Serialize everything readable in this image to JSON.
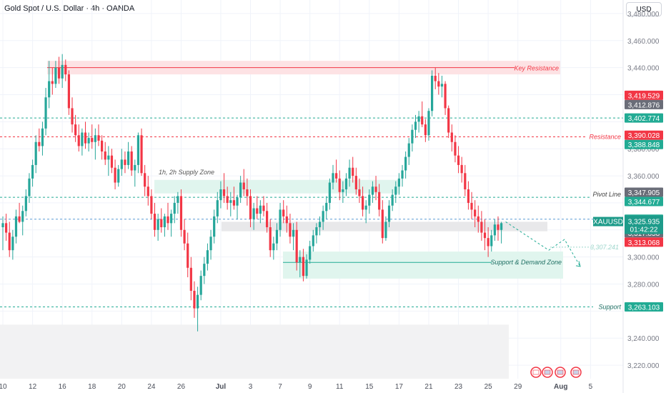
{
  "header": {
    "title": "Gold Spot / U.S. Dollar · 4h · OANDA",
    "currency": "USD"
  },
  "colors": {
    "up": "#26a69a",
    "down": "#f23645",
    "grid": "#f0f3fa",
    "resistance_line": "#f23645",
    "support_line": "#22ab94",
    "zone_red": "#fde2e4",
    "zone_green": "#e0f5ee",
    "zone_gray": "#e8e8ea",
    "label_green": "#22ab94",
    "label_red": "#f23645",
    "label_gray": "#6a6d78",
    "label_teal": "#1e9b8a"
  },
  "chart_data": {
    "type": "candlestick",
    "title": "Gold Spot / U.S. Dollar · 4h · OANDA",
    "ylim": [
      3210,
      3490
    ],
    "y_ticks": [
      3220,
      3240,
      3260,
      3280,
      3300,
      3320,
      3340,
      3360,
      3380,
      3400,
      3420,
      3440,
      3460,
      3480
    ],
    "y_tick_labels": [
      "3,220.000",
      "3,240.000",
      "",
      "3,280.000",
      "3,300.000",
      "",
      "",
      "3,360.000",
      "3,380.000",
      "",
      "",
      "3,440.000",
      "3,460.000",
      "3,480.000"
    ],
    "x_tick_labels": [
      {
        "label": "10",
        "bar": 0
      },
      {
        "label": "12",
        "bar": 9
      },
      {
        "label": "16",
        "bar": 18
      },
      {
        "label": "18",
        "bar": 27
      },
      {
        "label": "20",
        "bar": 36
      },
      {
        "label": "24",
        "bar": 45
      },
      {
        "label": "26",
        "bar": 54
      },
      {
        "label": "Jul",
        "bar": 66
      },
      {
        "label": "3",
        "bar": 75
      },
      {
        "label": "7",
        "bar": 84
      },
      {
        "label": "9",
        "bar": 93
      },
      {
        "label": "11",
        "bar": 102
      },
      {
        "label": "15",
        "bar": 111
      },
      {
        "label": "17",
        "bar": 120
      },
      {
        "label": "21",
        "bar": 129
      },
      {
        "label": "23",
        "bar": 138
      },
      {
        "label": "25",
        "bar": 147
      },
      {
        "label": "29",
        "bar": 156
      },
      {
        "label": "Aug",
        "bar": 169
      },
      {
        "label": "5",
        "bar": 178
      }
    ],
    "ohlc": [
      [
        3322,
        3330,
        3305,
        3325
      ],
      [
        3325,
        3332,
        3312,
        3318
      ],
      [
        3318,
        3326,
        3300,
        3305
      ],
      [
        3305,
        3320,
        3298,
        3315
      ],
      [
        3315,
        3335,
        3310,
        3330
      ],
      [
        3330,
        3340,
        3325,
        3326
      ],
      [
        3326,
        3338,
        3316,
        3334
      ],
      [
        3334,
        3350,
        3330,
        3345
      ],
      [
        3345,
        3362,
        3340,
        3358
      ],
      [
        3358,
        3372,
        3352,
        3368
      ],
      [
        3368,
        3390,
        3362,
        3385
      ],
      [
        3385,
        3395,
        3378,
        3382
      ],
      [
        3382,
        3400,
        3375,
        3395
      ],
      [
        3395,
        3425,
        3390,
        3418
      ],
      [
        3418,
        3445,
        3410,
        3430
      ],
      [
        3430,
        3440,
        3420,
        3428
      ],
      [
        3428,
        3445,
        3425,
        3440
      ],
      [
        3440,
        3448,
        3428,
        3432
      ],
      [
        3432,
        3450,
        3425,
        3442
      ],
      [
        3442,
        3446,
        3430,
        3435
      ],
      [
        3435,
        3438,
        3405,
        3410
      ],
      [
        3410,
        3418,
        3392,
        3398
      ],
      [
        3398,
        3405,
        3385,
        3390
      ],
      [
        3390,
        3398,
        3378,
        3382
      ],
      [
        3382,
        3395,
        3375,
        3392
      ],
      [
        3392,
        3400,
        3380,
        3384
      ],
      [
        3384,
        3392,
        3378,
        3388
      ],
      [
        3388,
        3398,
        3380,
        3385
      ],
      [
        3385,
        3395,
        3372,
        3390
      ],
      [
        3390,
        3398,
        3382,
        3386
      ],
      [
        3386,
        3390,
        3372,
        3378
      ],
      [
        3378,
        3385,
        3368,
        3372
      ],
      [
        3372,
        3382,
        3360,
        3375
      ],
      [
        3375,
        3380,
        3362,
        3366
      ],
      [
        3366,
        3372,
        3350,
        3355
      ],
      [
        3355,
        3368,
        3352,
        3365
      ],
      [
        3365,
        3380,
        3360,
        3372
      ],
      [
        3372,
        3378,
        3362,
        3368
      ],
      [
        3368,
        3385,
        3365,
        3378
      ],
      [
        3378,
        3382,
        3360,
        3364
      ],
      [
        3364,
        3372,
        3352,
        3368
      ],
      [
        3368,
        3392,
        3362,
        3390
      ],
      [
        3390,
        3395,
        3360,
        3362
      ],
      [
        3362,
        3368,
        3345,
        3352
      ],
      [
        3352,
        3360,
        3338,
        3345
      ],
      [
        3345,
        3350,
        3328,
        3332
      ],
      [
        3332,
        3340,
        3315,
        3320
      ],
      [
        3320,
        3332,
        3312,
        3328
      ],
      [
        3328,
        3336,
        3318,
        3322
      ],
      [
        3322,
        3332,
        3315,
        3330
      ],
      [
        3330,
        3340,
        3320,
        3325
      ],
      [
        3325,
        3335,
        3315,
        3332
      ],
      [
        3332,
        3345,
        3325,
        3340
      ],
      [
        3340,
        3348,
        3332,
        3345
      ],
      [
        3345,
        3350,
        3315,
        3320
      ],
      [
        3320,
        3328,
        3305,
        3310
      ],
      [
        3310,
        3318,
        3285,
        3292
      ],
      [
        3292,
        3300,
        3268,
        3275
      ],
      [
        3275,
        3282,
        3255,
        3262
      ],
      [
        3262,
        3278,
        3245,
        3272
      ],
      [
        3272,
        3290,
        3268,
        3286
      ],
      [
        3286,
        3300,
        3280,
        3295
      ],
      [
        3295,
        3310,
        3290,
        3305
      ],
      [
        3305,
        3320,
        3298,
        3315
      ],
      [
        3315,
        3335,
        3310,
        3330
      ],
      [
        3330,
        3348,
        3325,
        3342
      ],
      [
        3342,
        3356,
        3336,
        3350
      ],
      [
        3350,
        3362,
        3340,
        3345
      ],
      [
        3345,
        3352,
        3335,
        3340
      ],
      [
        3340,
        3348,
        3330,
        3342
      ],
      [
        3342,
        3352,
        3335,
        3338
      ],
      [
        3338,
        3346,
        3328,
        3344
      ],
      [
        3344,
        3360,
        3340,
        3355
      ],
      [
        3355,
        3365,
        3345,
        3350
      ],
      [
        3350,
        3358,
        3338,
        3345
      ],
      [
        3345,
        3350,
        3322,
        3328
      ],
      [
        3328,
        3340,
        3320,
        3336
      ],
      [
        3336,
        3345,
        3328,
        3332
      ],
      [
        3332,
        3342,
        3325,
        3338
      ],
      [
        3338,
        3345,
        3330,
        3334
      ],
      [
        3334,
        3340,
        3318,
        3322
      ],
      [
        3322,
        3328,
        3300,
        3305
      ],
      [
        3305,
        3315,
        3298,
        3310
      ],
      [
        3310,
        3325,
        3305,
        3320
      ],
      [
        3320,
        3340,
        3315,
        3335
      ],
      [
        3335,
        3342,
        3325,
        3330
      ],
      [
        3330,
        3338,
        3318,
        3325
      ],
      [
        3325,
        3332,
        3310,
        3315
      ],
      [
        3315,
        3325,
        3305,
        3320
      ],
      [
        3320,
        3326,
        3290,
        3296
      ],
      [
        3296,
        3305,
        3285,
        3300
      ],
      [
        3300,
        3306,
        3282,
        3286
      ],
      [
        3286,
        3302,
        3284,
        3298
      ],
      [
        3298,
        3312,
        3295,
        3308
      ],
      [
        3308,
        3320,
        3304,
        3316
      ],
      [
        3316,
        3325,
        3310,
        3322
      ],
      [
        3322,
        3330,
        3316,
        3326
      ],
      [
        3326,
        3338,
        3320,
        3334
      ],
      [
        3334,
        3345,
        3328,
        3340
      ],
      [
        3340,
        3358,
        3335,
        3355
      ],
      [
        3355,
        3368,
        3350,
        3362
      ],
      [
        3362,
        3372,
        3355,
        3358
      ],
      [
        3358,
        3364,
        3342,
        3348
      ],
      [
        3348,
        3356,
        3340,
        3350
      ],
      [
        3350,
        3362,
        3345,
        3358
      ],
      [
        3358,
        3372,
        3352,
        3366
      ],
      [
        3366,
        3374,
        3355,
        3360
      ],
      [
        3360,
        3366,
        3346,
        3350
      ],
      [
        3350,
        3358,
        3340,
        3345
      ],
      [
        3345,
        3352,
        3330,
        3335
      ],
      [
        3335,
        3342,
        3325,
        3338
      ],
      [
        3338,
        3350,
        3332,
        3346
      ],
      [
        3346,
        3356,
        3340,
        3352
      ],
      [
        3352,
        3360,
        3342,
        3348
      ],
      [
        3348,
        3354,
        3330,
        3335
      ],
      [
        3335,
        3342,
        3310,
        3314
      ],
      [
        3314,
        3330,
        3312,
        3326
      ],
      [
        3326,
        3342,
        3322,
        3338
      ],
      [
        3338,
        3350,
        3334,
        3346
      ],
      [
        3346,
        3356,
        3340,
        3352
      ],
      [
        3352,
        3362,
        3346,
        3358
      ],
      [
        3358,
        3368,
        3352,
        3364
      ],
      [
        3364,
        3378,
        3358,
        3374
      ],
      [
        3374,
        3388,
        3368,
        3384
      ],
      [
        3384,
        3398,
        3378,
        3394
      ],
      [
        3394,
        3405,
        3388,
        3400
      ],
      [
        3400,
        3408,
        3392,
        3404
      ],
      [
        3404,
        3415,
        3396,
        3398
      ],
      [
        3398,
        3402,
        3385,
        3390
      ],
      [
        3390,
        3410,
        3386,
        3408
      ],
      [
        3408,
        3438,
        3404,
        3434
      ],
      [
        3434,
        3440,
        3424,
        3430
      ],
      [
        3430,
        3436,
        3420,
        3426
      ],
      [
        3426,
        3434,
        3418,
        3428
      ],
      [
        3428,
        3430,
        3405,
        3410
      ],
      [
        3410,
        3412,
        3388,
        3392
      ],
      [
        3392,
        3398,
        3378,
        3385
      ],
      [
        3385,
        3390,
        3370,
        3375
      ],
      [
        3375,
        3382,
        3362,
        3368
      ],
      [
        3368,
        3374,
        3355,
        3362
      ],
      [
        3362,
        3368,
        3345,
        3350
      ],
      [
        3350,
        3356,
        3335,
        3340
      ],
      [
        3340,
        3348,
        3328,
        3335
      ],
      [
        3335,
        3342,
        3322,
        3330
      ],
      [
        3330,
        3338,
        3318,
        3326
      ],
      [
        3326,
        3334,
        3312,
        3318
      ],
      [
        3318,
        3328,
        3305,
        3314
      ],
      [
        3314,
        3322,
        3300,
        3308
      ],
      [
        3308,
        3320,
        3304,
        3316
      ],
      [
        3316,
        3328,
        3312,
        3324
      ],
      [
        3324,
        3330,
        3312,
        3320
      ],
      [
        3320,
        3326,
        3310,
        3325
      ]
    ]
  },
  "annotations": {
    "key_resistance": {
      "label": "Key Resistance",
      "price": 3440,
      "zone": [
        3435,
        3445
      ]
    },
    "supply_zone": {
      "label": "1h, 2h Supply Zone",
      "zone": [
        3347,
        3357
      ]
    },
    "resistance": {
      "label": "Resistance",
      "price": 3388.848
    },
    "pivot_line": {
      "label": "Pivot Line",
      "price": 3344.677
    },
    "upper_dashed": {
      "price": 3402.774
    },
    "mid_dashed": {
      "price": 3327.952
    },
    "gray_zone": {
      "zone": [
        3319,
        3326
      ]
    },
    "demand_zone": {
      "label": "Support & Demand Zone",
      "price": 3296,
      "zone": [
        3284,
        3304
      ]
    },
    "support": {
      "label": "Support",
      "price": 3263.103
    },
    "projection_target": {
      "label": "3,307.241",
      "price": 3307.241
    }
  },
  "price_labels": [
    {
      "text": "3,419.529",
      "price": 3419.529,
      "color": "red"
    },
    {
      "text": "3,412.876",
      "price": 3412.876,
      "color": "gray"
    },
    {
      "text": "3,402.774",
      "price": 3402.774,
      "color": "green"
    },
    {
      "text": "3,390.028",
      "price": 3390.028,
      "color": "red"
    },
    {
      "text": "3,388.848",
      "price": 3388.848,
      "color": "green"
    },
    {
      "text": "3,347.905",
      "price": 3347.905,
      "color": "gray"
    },
    {
      "text": "3,344.677",
      "price": 3344.677,
      "color": "green"
    },
    {
      "text": "3,327.952",
      "price": 3327.952,
      "color": "green"
    },
    {
      "text": "3,317.858",
      "price": 3317.858,
      "color": "gray"
    },
    {
      "text": "3,313.068",
      "price": 3313.068,
      "color": "red"
    },
    {
      "text": "3,263.103",
      "price": 3263.103,
      "color": "green"
    }
  ],
  "current_price": {
    "symbol": "XAUUSD",
    "price_text": "3,325.935",
    "countdown": "01:42:22",
    "price": 3325.935
  }
}
